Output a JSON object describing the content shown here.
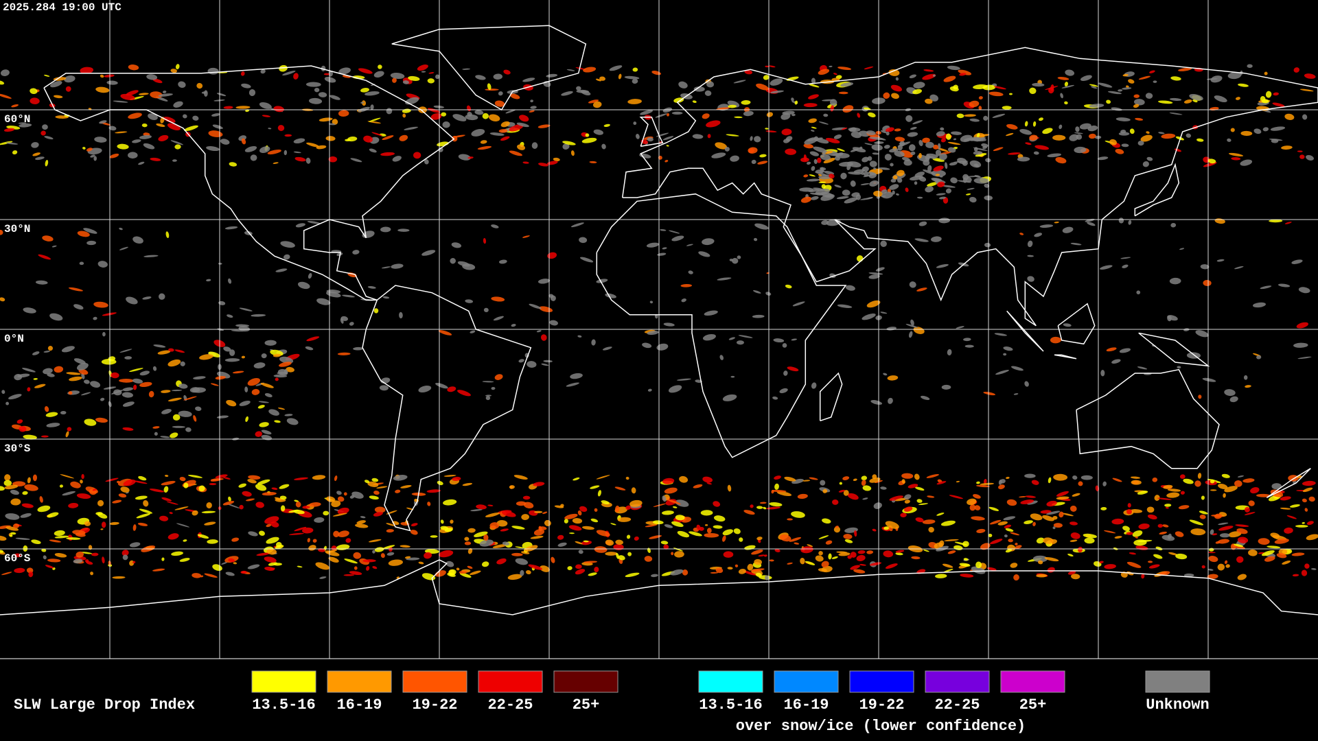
{
  "header": {
    "timestamp": "2025.284 19:00 UTC"
  },
  "map": {
    "latitude_labels": [
      "60°N",
      "30°N",
      "0°N",
      "30°S",
      "60°S"
    ]
  },
  "legend": {
    "title": "SLW Large Drop Index",
    "groups": [
      {
        "items": [
          {
            "label": "13.5-16",
            "color": "#ffff00"
          },
          {
            "label": "16-19",
            "color": "#ff9900"
          },
          {
            "label": "19-22",
            "color": "#ff5500"
          },
          {
            "label": "22-25",
            "color": "#ee0000"
          },
          {
            "label": "25+",
            "color": "#660000"
          }
        ]
      },
      {
        "items": [
          {
            "label": "13.5-16",
            "color": "#00ffff"
          },
          {
            "label": "16-19",
            "color": "#0088ff"
          },
          {
            "label": "19-22",
            "color": "#0000ff"
          },
          {
            "label": "22-25",
            "color": "#7700dd"
          },
          {
            "label": "25+",
            "color": "#cc00cc"
          }
        ],
        "caption": "over snow/ice (lower confidence)"
      }
    ],
    "unknown": {
      "label": "Unknown",
      "color": "#808080"
    }
  }
}
